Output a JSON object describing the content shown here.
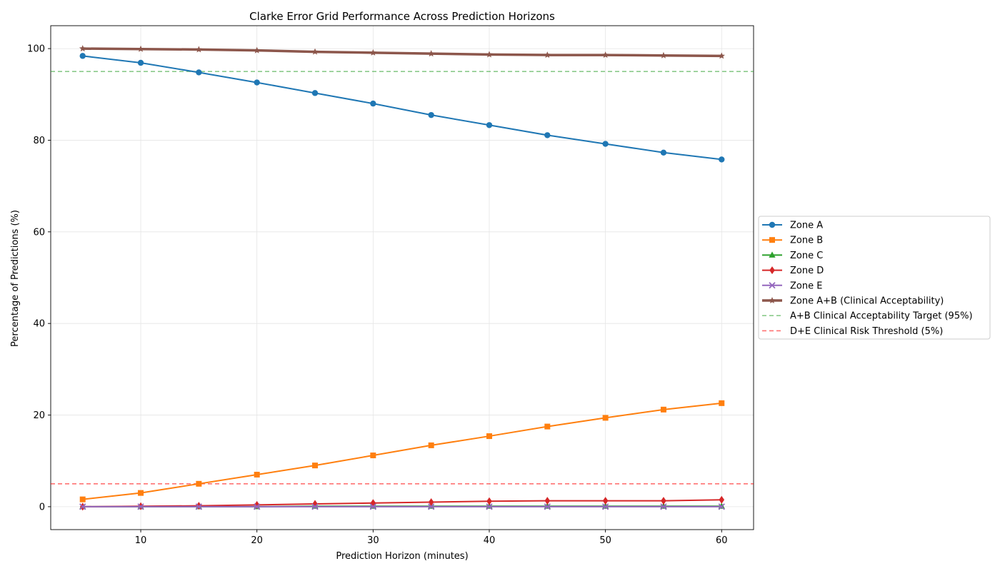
{
  "chart_data": {
    "type": "line",
    "title": "Clarke Error Grid Performance Across Prediction Horizons",
    "xlabel": "Prediction Horizon (minutes)",
    "ylabel": "Percentage of Predictions (%)",
    "x": [
      5,
      10,
      15,
      20,
      25,
      30,
      35,
      40,
      45,
      50,
      55,
      60
    ],
    "xlim": [
      2.25,
      62.75
    ],
    "ylim": [
      -5,
      105
    ],
    "xticks": [
      10,
      20,
      30,
      40,
      50,
      60
    ],
    "yticks": [
      0,
      20,
      40,
      60,
      80,
      100
    ],
    "grid": true,
    "legend_position": "center-right, outside plot",
    "series": [
      {
        "name": "Zone A",
        "color": "#1f77b4",
        "marker": "circle",
        "width": 2,
        "values": [
          98.4,
          96.9,
          94.8,
          92.6,
          90.3,
          88.0,
          85.5,
          83.3,
          81.1,
          79.2,
          77.3,
          75.8
        ]
      },
      {
        "name": "Zone B",
        "color": "#ff7f0e",
        "marker": "square",
        "width": 2,
        "values": [
          1.6,
          3.0,
          5.0,
          7.0,
          9.0,
          11.2,
          13.4,
          15.4,
          17.5,
          19.4,
          21.2,
          22.6
        ]
      },
      {
        "name": "Zone C",
        "color": "#2ca02c",
        "marker": "triangle",
        "width": 2,
        "values": [
          0.0,
          0.0,
          0.0,
          0.0,
          0.1,
          0.1,
          0.1,
          0.1,
          0.1,
          0.1,
          0.1,
          0.1
        ]
      },
      {
        "name": "Zone D",
        "color": "#d62728",
        "marker": "diamond",
        "width": 2,
        "values": [
          0.0,
          0.1,
          0.2,
          0.4,
          0.6,
          0.8,
          1.0,
          1.2,
          1.3,
          1.3,
          1.3,
          1.5
        ]
      },
      {
        "name": "Zone E",
        "color": "#9467bd",
        "marker": "x",
        "width": 2,
        "values": [
          0.0,
          0.0,
          0.0,
          0.0,
          0.0,
          0.0,
          0.0,
          0.0,
          0.0,
          0.0,
          0.0,
          0.0
        ]
      },
      {
        "name": "Zone A+B (Clinical Acceptability)",
        "color": "#8c564b",
        "marker": "star",
        "width": 3.5,
        "values": [
          100.0,
          99.9,
          99.8,
          99.6,
          99.3,
          99.1,
          98.9,
          98.7,
          98.6,
          98.6,
          98.5,
          98.4
        ]
      }
    ],
    "reference_lines": [
      {
        "name": "A+B Clinical Acceptability Target (95%)",
        "y": 95,
        "color": "#2ca02c"
      },
      {
        "name": "D+E Clinical Risk Threshold (5%)",
        "y": 5,
        "color": "#ff0000"
      }
    ]
  }
}
